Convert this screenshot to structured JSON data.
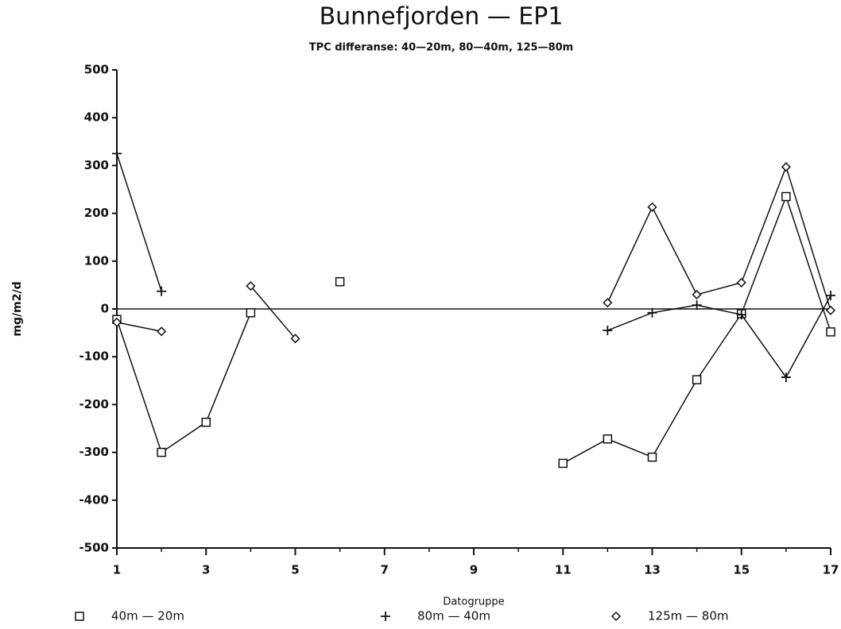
{
  "chart_data": {
    "type": "line",
    "title": "Bunnefjorden — EP1",
    "subtitle": "TPC differanse: 40—20m, 80—40m, 125—80m",
    "x_label": "Datogruppe",
    "y_label": "mg/m2/d",
    "x": [
      1,
      2,
      3,
      4,
      5,
      6,
      7,
      8,
      9,
      10,
      11,
      12,
      13,
      14,
      15,
      16,
      17
    ],
    "xlim": [
      1,
      17
    ],
    "xticks": [
      1,
      3,
      5,
      7,
      9,
      11,
      13,
      15,
      17
    ],
    "ylim": [
      -500,
      500
    ],
    "yticks": [
      -500,
      -400,
      -300,
      -200,
      -100,
      0,
      100,
      200,
      300,
      400,
      500
    ],
    "series": [
      {
        "name": "40m — 20m",
        "color": "#111111",
        "marker": "square",
        "values": [
          -22,
          -300,
          -237,
          -8,
          null,
          57,
          null,
          null,
          null,
          null,
          -323,
          -272,
          -310,
          -148,
          -10,
          235,
          -48
        ]
      },
      {
        "name": "80m — 40m",
        "color": "#111111",
        "marker": "plus",
        "values": [
          325,
          37,
          null,
          null,
          null,
          null,
          null,
          null,
          null,
          null,
          null,
          -45,
          -8,
          8,
          -12,
          -143,
          28
        ]
      },
      {
        "name": "125m — 80m",
        "color": "#111111",
        "marker": "diamond",
        "values": [
          -28,
          -47,
          null,
          48,
          -62,
          null,
          null,
          null,
          null,
          null,
          null,
          13,
          213,
          30,
          55,
          297,
          -3
        ]
      }
    ]
  }
}
